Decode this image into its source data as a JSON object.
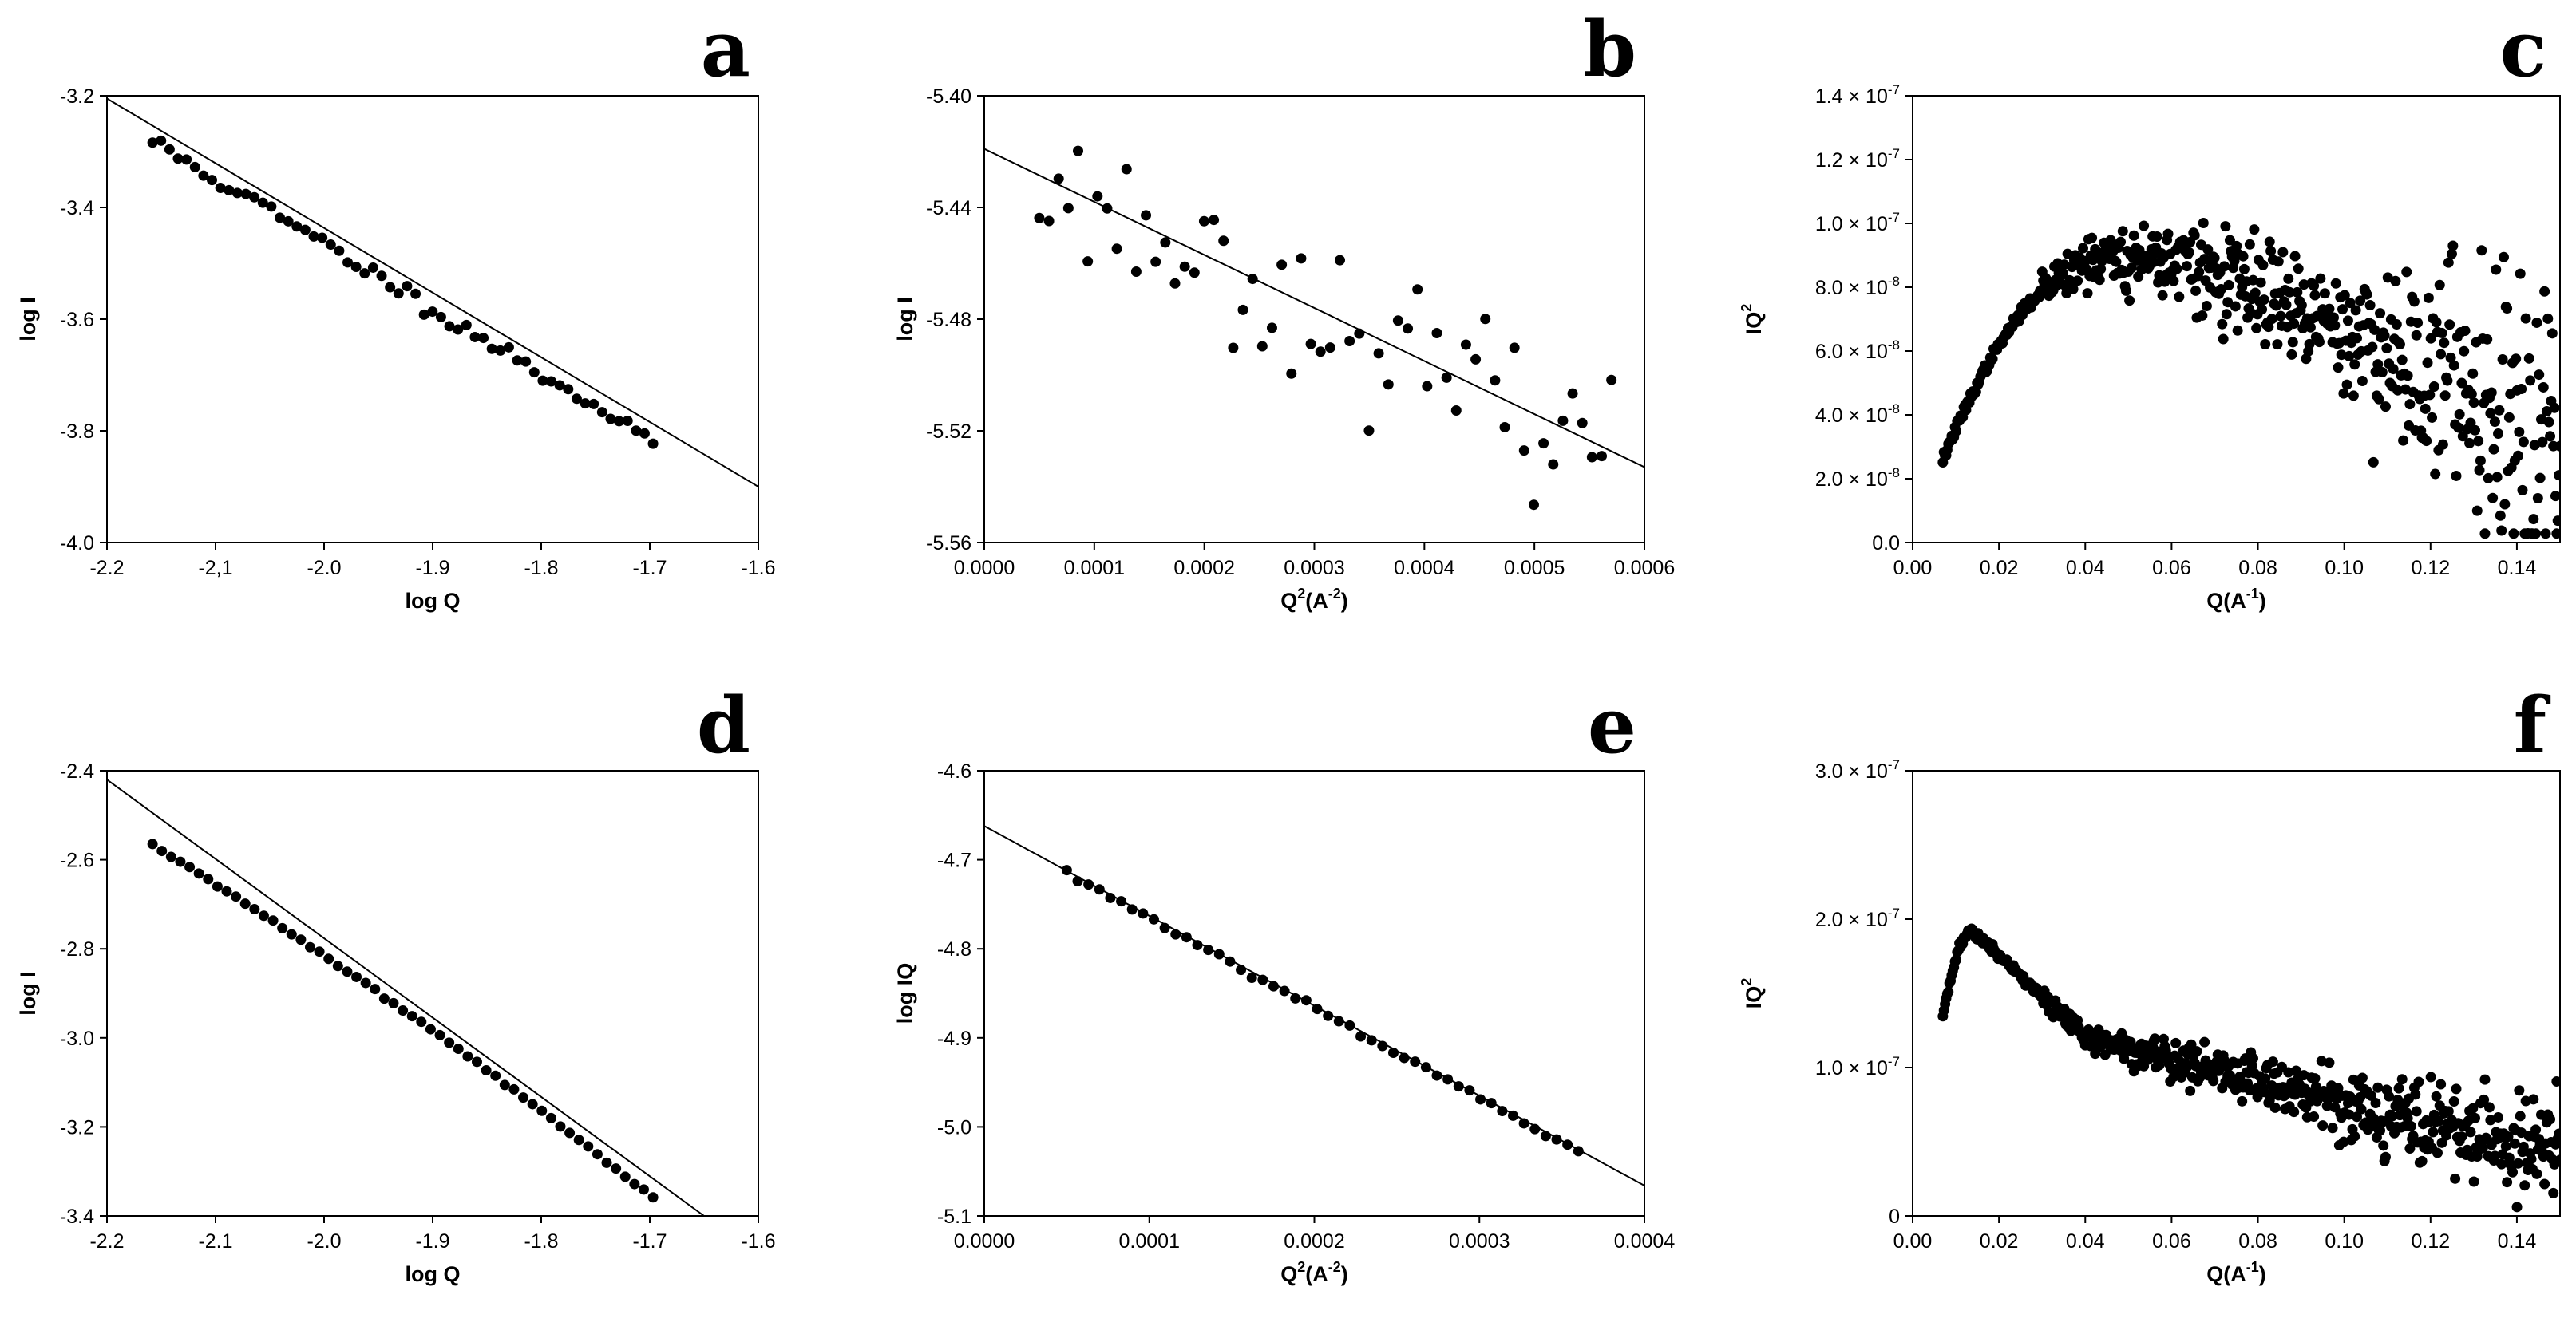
{
  "chart_data": [
    {
      "panel": "a",
      "type": "scatter",
      "xlabel": "log Q",
      "ylabel": "log I",
      "xlim": [
        -2.2,
        -1.6
      ],
      "ylim": [
        -4.0,
        -3.2
      ],
      "xticks": [
        -2.2,
        -2.1,
        -2.0,
        -1.9,
        -1.8,
        -1.7,
        -1.6
      ],
      "xtick_labels": [
        "-2.2",
        "-2,1",
        "-2.0",
        "-1.9",
        "-1.8",
        "-1.7",
        "-1.6"
      ],
      "yticks": [
        -4.0,
        -3.8,
        -3.6,
        -3.4,
        -3.2
      ],
      "ytick_labels": [
        "-4.0",
        "-3.8",
        "-3.6",
        "-3.4",
        "-3.2"
      ],
      "fit": {
        "x": [
          -2.2,
          -1.6
        ],
        "y": [
          -3.205,
          -3.9
        ]
      },
      "points": {
        "x_start": -2.158,
        "x_end": -1.697,
        "n": 60,
        "slope": -1.16,
        "intercept": -5.785,
        "noise": 0.008,
        "seed": 11
      }
    },
    {
      "panel": "b",
      "type": "scatter",
      "xlabel": "Q2(A-2)",
      "ylabel": "log I",
      "xlabel_main": "Q",
      "xlabel_sup1": "2",
      "xlabel_mid": "(A",
      "xlabel_sup2": "-2",
      "xlabel_end": ")",
      "xlim": [
        0,
        0.0006
      ],
      "ylim": [
        -5.56,
        -5.4
      ],
      "xticks": [
        0,
        0.0001,
        0.0002,
        0.0003,
        0.0004,
        0.0005,
        0.0006
      ],
      "xtick_labels": [
        "0.0000",
        "0.0001",
        "0.0002",
        "0.0003",
        "0.0004",
        "0.0005",
        "0.0006"
      ],
      "yticks": [
        -5.56,
        -5.52,
        -5.48,
        -5.44,
        -5.4
      ],
      "ytick_labels": [
        "-5.56",
        "-5.52",
        "-5.48",
        "-5.44",
        "-5.40"
      ],
      "fit": {
        "x": [
          0,
          0.0006
        ],
        "y": [
          -5.419,
          -5.533
        ]
      },
      "points": {
        "x_start": 5e-05,
        "x_end": 0.00057,
        "n": 60,
        "slope": -190,
        "intercept": -5.421,
        "noise": 0.012,
        "seed": 23
      }
    },
    {
      "panel": "c",
      "type": "scatter",
      "xlabel": "Q(A-1)",
      "ylabel": "IQ2",
      "xlabel_main": "Q(A",
      "xlabel_sup1": "-1",
      "xlabel_end": ")",
      "ylabel_main": "IQ",
      "ylabel_sup": "2",
      "xlim": [
        0,
        0.15
      ],
      "ylim": [
        0,
        1.4e-07
      ],
      "xticks": [
        0,
        0.02,
        0.04,
        0.06,
        0.08,
        0.1,
        0.12,
        0.14
      ],
      "xtick_labels": [
        "0.00",
        "0.02",
        "0.04",
        "0.06",
        "0.08",
        "0.10",
        "0.12",
        "0.14"
      ],
      "yticks": [
        0,
        2e-08,
        4e-08,
        6e-08,
        8e-08,
        1e-07,
        1.2e-07,
        1.4e-07
      ],
      "ytick_labels": [
        {
          "mant": "0.0",
          "exp": ""
        },
        {
          "mant": "2.0 × 10",
          "exp": "-8"
        },
        {
          "mant": "4.0 × 10",
          "exp": "-8"
        },
        {
          "mant": "6.0 × 10",
          "exp": "-8"
        },
        {
          "mant": "8.0 × 10",
          "exp": "-8"
        },
        {
          "mant": "1.0 × 10",
          "exp": "-7"
        },
        {
          "mant": "1.2 × 10",
          "exp": "-7"
        },
        {
          "mant": "1.4 × 10",
          "exp": "-7"
        }
      ],
      "kratky": {
        "x_start": 0.007,
        "x_end": 0.15,
        "n": 560,
        "curve": "c",
        "seed": 37
      }
    },
    {
      "panel": "d",
      "type": "scatter",
      "xlabel": "log Q",
      "ylabel": "log I",
      "xlim": [
        -2.2,
        -1.6
      ],
      "ylim": [
        -3.4,
        -2.4
      ],
      "xticks": [
        -2.2,
        -2.1,
        -2.0,
        -1.9,
        -1.8,
        -1.7,
        -1.6
      ],
      "xtick_labels": [
        "-2.2",
        "-2.1",
        "-2.0",
        "-1.9",
        "-1.8",
        "-1.7",
        "-1.6"
      ],
      "yticks": [
        -3.4,
        -3.2,
        -3.0,
        -2.8,
        -2.6,
        -2.4
      ],
      "ytick_labels": [
        "-3.4",
        "-3.2",
        "-3.0",
        "-2.8",
        "-2.6",
        "-2.4"
      ],
      "fit": {
        "x": [
          -2.2,
          -1.65
        ],
        "y": [
          -2.42,
          -3.4
        ]
      },
      "points": {
        "x_start": -2.158,
        "x_end": -1.697,
        "n": 55,
        "curve": "d",
        "noise": 0.002,
        "seed": 41
      }
    },
    {
      "panel": "e",
      "type": "scatter",
      "xlabel": "Q2(A-2)",
      "ylabel": "log IQ",
      "xlabel_main": "Q",
      "xlabel_sup1": "2",
      "xlabel_mid": "(A",
      "xlabel_sup2": "-2",
      "xlabel_end": ")",
      "xlim": [
        0,
        0.0004
      ],
      "ylim": [
        -5.1,
        -4.6
      ],
      "xticks": [
        0,
        0.0001,
        0.0002,
        0.0003,
        0.0004
      ],
      "xtick_labels": [
        "0.0000",
        "0.0001",
        "0.0002",
        "0.0003",
        "0.0004"
      ],
      "yticks": [
        -5.1,
        -5.0,
        -4.9,
        -4.8,
        -4.7,
        -4.6
      ],
      "ytick_labels": [
        "-5.1",
        "-5.0",
        "-4.9",
        "-4.8",
        "-4.7",
        "-4.6"
      ],
      "fit": {
        "x": [
          0,
          0.0004
        ],
        "y": [
          -4.662,
          -5.066
        ]
      },
      "points": {
        "x_start": 5e-05,
        "x_end": 0.00036,
        "n": 48,
        "slope": -1010,
        "intercept": -4.664,
        "noise": 0.002,
        "seed": 53
      }
    },
    {
      "panel": "f",
      "type": "scatter",
      "xlabel": "Q(A-1)",
      "ylabel": "IQ2",
      "xlabel_main": "Q(A",
      "xlabel_sup1": "-1",
      "xlabel_end": ")",
      "ylabel_main": "IQ",
      "ylabel_sup": "2",
      "xlim": [
        0,
        0.15
      ],
      "ylim": [
        0,
        3e-07
      ],
      "xticks": [
        0,
        0.02,
        0.04,
        0.06,
        0.08,
        0.1,
        0.12,
        0.14
      ],
      "xtick_labels": [
        "0.00",
        "0.02",
        "0.04",
        "0.06",
        "0.08",
        "0.10",
        "0.12",
        "0.14"
      ],
      "yticks": [
        0,
        1e-07,
        2e-07,
        3e-07
      ],
      "ytick_labels": [
        {
          "mant": "0",
          "exp": ""
        },
        {
          "mant": "1.0 × 10",
          "exp": "-7"
        },
        {
          "mant": "2.0 × 10",
          "exp": "-7"
        },
        {
          "mant": "3.0 × 10",
          "exp": "-7"
        }
      ],
      "kratky": {
        "x_start": 0.007,
        "x_end": 0.15,
        "n": 560,
        "curve": "f",
        "seed": 71
      }
    }
  ]
}
